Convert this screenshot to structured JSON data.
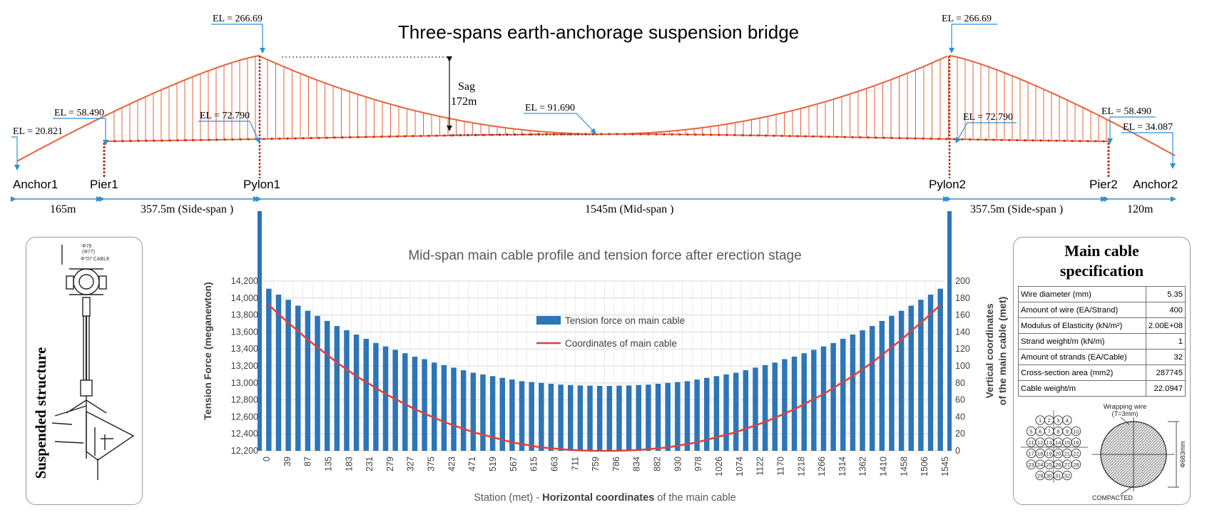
{
  "bridge": {
    "title": "Three-spans earth-anchorage suspension bridge",
    "elevations": {
      "anchor1": "EL = 20.821",
      "pier1": "EL = 58.490",
      "pylon1_top": "EL = 266.69",
      "pylon1_deck": "EL = 72.790",
      "mid": "EL = 91.690",
      "pylon2_top": "EL = 266.69",
      "pylon2_deck": "EL = 72.790",
      "pier2": "EL = 58.490",
      "anchor2": "EL = 34.087"
    },
    "sag_label": "Sag",
    "sag_value": "172m",
    "supports": [
      "Anchor1",
      "Pier1",
      "Pylon1",
      "Pylon2",
      "Pier2",
      "Anchor2"
    ],
    "spans": [
      "165m",
      "357.5m (Side-span )",
      "1545m (Mid-span )",
      "357.5m (Side-span )",
      "120m"
    ]
  },
  "suspended_structure": {
    "title": "Suspended structure",
    "drawing_text": [
      "Φ76",
      "(Φ77)",
      "Φ\"07 CABLE"
    ]
  },
  "spec": {
    "title_line1": "Main cable",
    "title_line2": "specification",
    "rows": [
      {
        "label": "Wire diameter (mm)",
        "value": "5.35"
      },
      {
        "label": "Amount of wire (EA/Strand)",
        "value": "400"
      },
      {
        "label": "Modulus of Elasticity (kN/m²)",
        "value": "2.00E+08"
      },
      {
        "label": "Strand weight/m (kN/m)",
        "value": "1"
      },
      {
        "label": "Amount of strands (EA/Cable)",
        "value": "32"
      },
      {
        "label": "Cross-section area (mm2)",
        "value": "287745"
      },
      {
        "label": "Cable weight/m",
        "value": "22.0947"
      }
    ],
    "wrapping_label": "Wrapping wire",
    "wrapping_sub": "(T=3mm)",
    "compacted_label": "COMPACTED",
    "diameter_label": "Φ683mm",
    "strand_numbers": [
      "1",
      "2",
      "3",
      "4",
      "5",
      "6",
      "7",
      "8",
      "9",
      "10",
      "11",
      "12",
      "13",
      "14",
      "15",
      "16",
      "17",
      "18",
      "19",
      "20",
      "21",
      "22",
      "23",
      "24",
      "25",
      "26",
      "27",
      "28",
      "29",
      "30",
      "31",
      "32"
    ]
  },
  "chart_data": {
    "type": "bar",
    "title": "Mid-span main cable profile and tension force after erection stage",
    "xlabel_prefix": "Station (met) - ",
    "xlabel_bold": "Horizontal coordinates",
    "xlabel_suffix": " of the main cable",
    "ylabel_left": "Tension Force (meganewton)",
    "ylabel_right_line1": "Vertical coordinates",
    "ylabel_right_line2": "of the main cable (met)",
    "ylim_left": [
      12200,
      14200
    ],
    "ylim_right": [
      0,
      200
    ],
    "yticks_left": [
      "12,200",
      "12,400",
      "12,600",
      "12,800",
      "13,000",
      "13,200",
      "13,400",
      "13,600",
      "13,800",
      "14,000",
      "14,200"
    ],
    "yticks_right": [
      "0",
      "20",
      "40",
      "60",
      "80",
      "100",
      "120",
      "140",
      "160",
      "180",
      "200"
    ],
    "tick_labels": [
      "0",
      "39",
      "87",
      "135",
      "183",
      "231",
      "279",
      "327",
      "375",
      "423",
      "471",
      "519",
      "567",
      "615",
      "663",
      "711",
      "759",
      "786",
      "834",
      "882",
      "930",
      "978",
      "1026",
      "1074",
      "1122",
      "1170",
      "1218",
      "1266",
      "1314",
      "1362",
      "1410",
      "1458",
      "1506",
      "1545"
    ],
    "legend_position": "center",
    "grid": true,
    "series": [
      {
        "name": "Tension force on main cable",
        "axis": "left",
        "color": "#2e75b6",
        "values": [
          14110,
          14040,
          13980,
          13910,
          13850,
          13790,
          13730,
          13670,
          13620,
          13570,
          13520,
          13470,
          13430,
          13390,
          13350,
          13310,
          13280,
          13240,
          13210,
          13180,
          13150,
          13120,
          13100,
          13080,
          13060,
          13040,
          13020,
          13010,
          13000,
          12990,
          12980,
          12975,
          12970,
          12968,
          12965,
          12965,
          12968,
          12970,
          12975,
          12980,
          12990,
          13000,
          13010,
          13020,
          13040,
          13060,
          13080,
          13100,
          13120,
          13150,
          13180,
          13210,
          13240,
          13280,
          13310,
          13350,
          13390,
          13430,
          13470,
          13520,
          13570,
          13620,
          13670,
          13730,
          13790,
          13850,
          13910,
          13980,
          14040,
          14110
        ]
      },
      {
        "name": "Coordinates of main cable",
        "axis": "right",
        "color": "#e0403a",
        "values": [
          172,
          161,
          151,
          141,
          131,
          122,
          113,
          104,
          96,
          88,
          81,
          74,
          67,
          61,
          55,
          49,
          44,
          39,
          34,
          30,
          26,
          22,
          19,
          16,
          13,
          10,
          8,
          6,
          4,
          3,
          2,
          1,
          0.5,
          0.1,
          0,
          0,
          0.1,
          0.5,
          1,
          2,
          3,
          4,
          6,
          8,
          10,
          13,
          16,
          19,
          22,
          26,
          30,
          34,
          39,
          44,
          49,
          55,
          61,
          67,
          74,
          81,
          88,
          96,
          104,
          113,
          122,
          131,
          141,
          151,
          161,
          172
        ]
      }
    ]
  }
}
